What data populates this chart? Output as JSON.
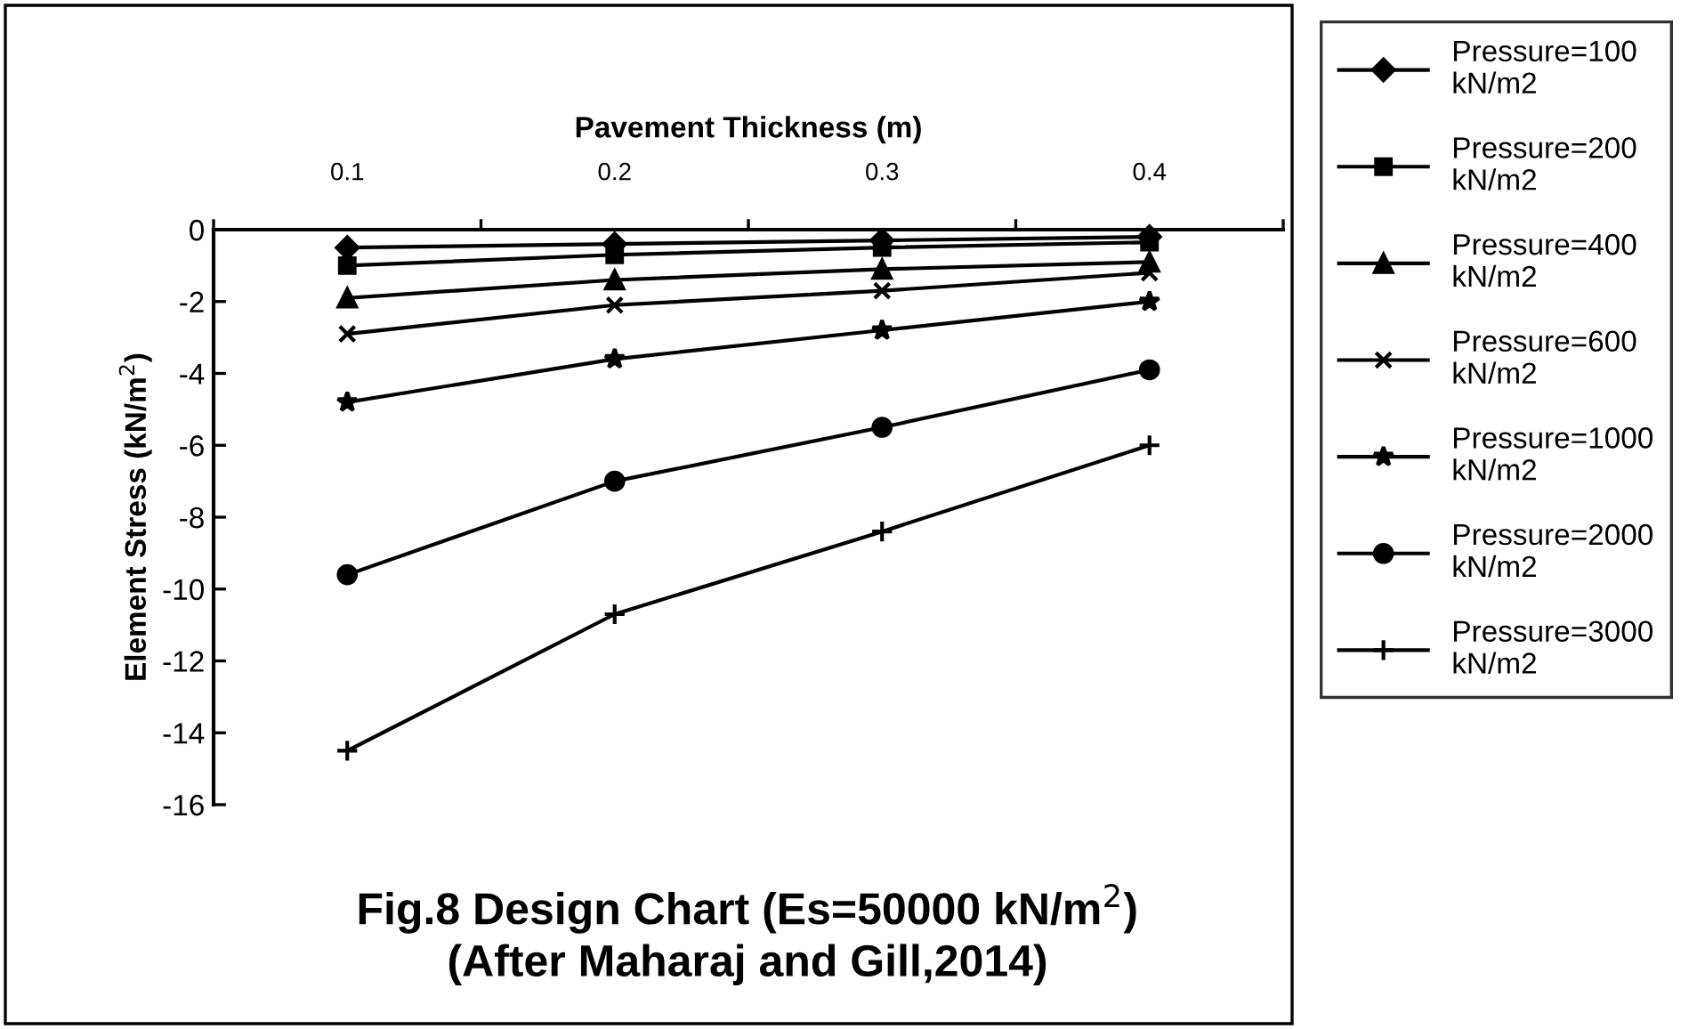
{
  "chart_data": {
    "type": "line",
    "title": "Fig.8 Design Chart (Es=50000 kN/m$^{2}$)\n(After Maharaj and Gill,2014)",
    "xlabel": "Pavement Thickness (m)",
    "ylabel": "Element Stress (kN/m$^{2}$)",
    "categories": [
      "0.1",
      "0.2",
      "0.3",
      "0.4"
    ],
    "ylim": [
      -16,
      0
    ],
    "yticks": [
      -16,
      -14,
      -12,
      -10,
      -8,
      -6,
      -4,
      -2,
      0
    ],
    "grid": false,
    "legend": "right",
    "series": [
      {
        "name": "Pressure=100 kN/m2",
        "color": "#000000",
        "marker": "diamond",
        "values": [
          -0.5,
          -0.4,
          -0.3,
          -0.2
        ]
      },
      {
        "name": "Pressure=200 kN/m2",
        "color": "#000000",
        "marker": "square",
        "values": [
          -1.0,
          -0.7,
          -0.5,
          -0.35
        ]
      },
      {
        "name": "Pressure=400 kN/m2",
        "color": "#000000",
        "marker": "triangle",
        "values": [
          -1.9,
          -1.4,
          -1.1,
          -0.9
        ]
      },
      {
        "name": "Pressure=600 kN/m2",
        "color": "#000000",
        "marker": "cross",
        "values": [
          -2.9,
          -2.1,
          -1.7,
          -1.2
        ]
      },
      {
        "name": "Pressure=1000 kN/m2",
        "color": "#000000",
        "marker": "star",
        "values": [
          -4.8,
          -3.6,
          -2.8,
          -2.0
        ]
      },
      {
        "name": "Pressure=2000 kN/m2",
        "color": "#000000",
        "marker": "circle",
        "values": [
          -9.6,
          -7.0,
          -5.5,
          -3.9
        ]
      },
      {
        "name": "Pressure=3000 kN/m2",
        "color": "#000000",
        "marker": "plus",
        "values": [
          -14.5,
          -10.7,
          -8.4,
          -6.0
        ]
      }
    ]
  }
}
